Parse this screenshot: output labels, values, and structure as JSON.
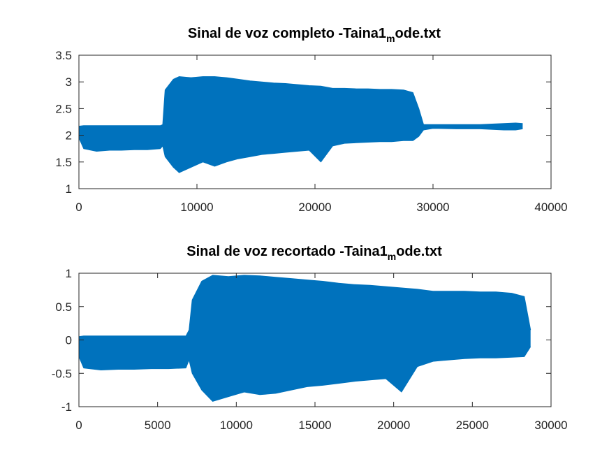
{
  "colors": {
    "series": "#0072BD",
    "axes": "#262626"
  },
  "chart_data": [
    {
      "type": "line",
      "title_parts": {
        "main": "Sinal de voz completo -Taina1",
        "sub": "m",
        "tail": "ode.txt"
      },
      "xlabel": "",
      "ylabel": "",
      "xlim": [
        0,
        40000
      ],
      "ylim": [
        1,
        3.5
      ],
      "xticks": [
        0,
        10000,
        20000,
        30000,
        40000
      ],
      "yticks": [
        1,
        1.5,
        2,
        2.5,
        3,
        3.5
      ],
      "ytick_labels": [
        "1",
        "1.5",
        "2",
        "2.5",
        "3",
        "3.5"
      ],
      "grid": false,
      "envelope": {
        "x": [
          0,
          400,
          1500,
          2600,
          3600,
          4700,
          5800,
          6900,
          7100,
          7300,
          8000,
          8500,
          9500,
          10500,
          11500,
          12500,
          13500,
          14500,
          15500,
          16500,
          17500,
          18500,
          19500,
          20500,
          21500,
          22500,
          23500,
          24500,
          25500,
          26500,
          27500,
          28300,
          28800,
          29200,
          30000,
          32000,
          34000,
          36000,
          37000,
          37600
        ],
        "max": [
          2.17,
          2.18,
          2.18,
          2.18,
          2.18,
          2.18,
          2.18,
          2.18,
          2.2,
          2.85,
          3.05,
          3.1,
          3.08,
          3.1,
          3.1,
          3.08,
          3.05,
          3.02,
          3.0,
          2.98,
          2.97,
          2.95,
          2.93,
          2.92,
          2.88,
          2.88,
          2.87,
          2.87,
          2.86,
          2.86,
          2.85,
          2.8,
          2.5,
          2.2,
          2.2,
          2.2,
          2.2,
          2.22,
          2.23,
          2.22
        ],
        "min": [
          1.95,
          1.75,
          1.7,
          1.72,
          1.72,
          1.73,
          1.73,
          1.75,
          1.8,
          1.6,
          1.4,
          1.3,
          1.4,
          1.5,
          1.42,
          1.5,
          1.56,
          1.6,
          1.64,
          1.66,
          1.68,
          1.7,
          1.72,
          1.5,
          1.8,
          1.85,
          1.86,
          1.87,
          1.88,
          1.88,
          1.9,
          1.9,
          1.98,
          2.1,
          2.13,
          2.12,
          2.12,
          2.1,
          2.1,
          2.12
        ]
      }
    },
    {
      "type": "line",
      "title_parts": {
        "main": "Sinal de voz recortado -Taina1",
        "sub": "m",
        "tail": "ode.txt"
      },
      "xlabel": "",
      "ylabel": "",
      "xlim": [
        0,
        30000
      ],
      "ylim": [
        -1,
        1
      ],
      "xticks": [
        0,
        5000,
        10000,
        15000,
        20000,
        25000,
        30000
      ],
      "yticks": [
        -1,
        -0.5,
        0,
        0.5,
        1
      ],
      "ytick_labels": [
        "-1",
        "-0.5",
        "0",
        "0.5",
        "1"
      ],
      "grid": false,
      "envelope": {
        "x": [
          0,
          300,
          1400,
          2500,
          3500,
          4600,
          5700,
          6800,
          7000,
          7200,
          7800,
          8500,
          9500,
          10500,
          11500,
          12500,
          13500,
          14500,
          15500,
          16500,
          17500,
          18500,
          19500,
          20500,
          21500,
          22500,
          23500,
          24500,
          25500,
          26500,
          27500,
          28300,
          28700
        ],
        "max": [
          0.05,
          0.06,
          0.06,
          0.06,
          0.06,
          0.06,
          0.06,
          0.06,
          0.15,
          0.6,
          0.88,
          0.97,
          0.95,
          0.97,
          0.96,
          0.94,
          0.92,
          0.9,
          0.88,
          0.85,
          0.83,
          0.82,
          0.8,
          0.78,
          0.76,
          0.73,
          0.73,
          0.73,
          0.72,
          0.72,
          0.7,
          0.65,
          0.15
        ],
        "min": [
          -0.25,
          -0.42,
          -0.45,
          -0.44,
          -0.44,
          -0.43,
          -0.43,
          -0.42,
          -0.3,
          -0.5,
          -0.75,
          -0.92,
          -0.85,
          -0.78,
          -0.82,
          -0.8,
          -0.75,
          -0.7,
          -0.68,
          -0.65,
          -0.62,
          -0.6,
          -0.58,
          -0.78,
          -0.4,
          -0.32,
          -0.3,
          -0.28,
          -0.27,
          -0.27,
          -0.26,
          -0.25,
          -0.1
        ]
      }
    }
  ]
}
